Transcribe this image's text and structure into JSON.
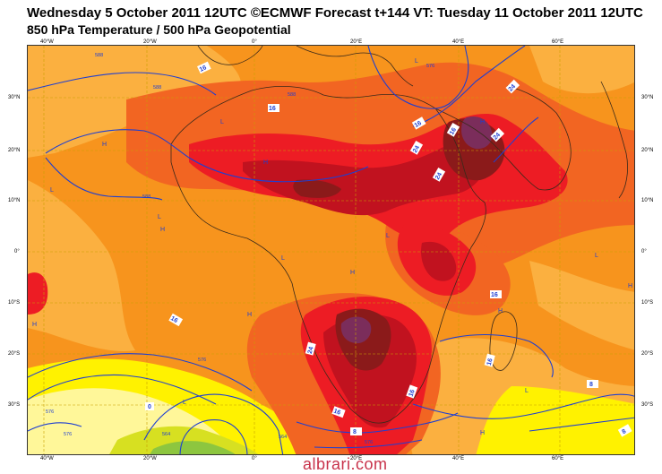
{
  "title": {
    "line1": "Wednesday 5 October 2011 12UTC ©ECMWF Forecast t+144 VT: Tuesday 11 October 2011 12UTC",
    "line2": "850 hPa Temperature / 500 hPa Geopotential"
  },
  "axes": {
    "top_ticks": [
      "40°W",
      "20°W",
      "0°",
      "20°E",
      "40°E",
      "60°E"
    ],
    "bottom_ticks": [
      "40°W",
      "20°W",
      "0°",
      "20°E",
      "40°E",
      "60°E"
    ],
    "left_ticks": [
      "30°N",
      "20°N",
      "10°N",
      "0°",
      "10°S",
      "20°S",
      "30°S"
    ],
    "right_ticks": [
      "30°N",
      "20°N",
      "10°N",
      "0°",
      "10°S",
      "20°S",
      "30°S"
    ]
  },
  "colors": {
    "orange": "#f7941d",
    "light_orange": "#fbb040",
    "red_orange": "#f26522",
    "red": "#ed1c24",
    "dark_red": "#c1121f",
    "maroon": "#8b1a1a",
    "purple": "#7b2d5b",
    "yellow": "#fff200",
    "pale_yellow": "#fff799",
    "yellow_green": "#d7e021",
    "green": "#8dc63f",
    "contour": "#1f3fd1",
    "coast": "#3b2a1a",
    "grid": "#c8a000"
  },
  "pressure_labels": {
    "H": "H",
    "L": "L"
  },
  "temperature_labels": [
    "16",
    "16",
    "16",
    "24",
    "16",
    "24",
    "24",
    "24",
    "16",
    "16",
    "16",
    "8",
    "8",
    "8",
    "16",
    "16",
    "24",
    "0"
  ],
  "geopotential_labels": [
    "588",
    "588",
    "576",
    "588",
    "576",
    "576",
    "576",
    "564",
    "564",
    "576",
    "588"
  ],
  "watermark": "albrari.com"
}
